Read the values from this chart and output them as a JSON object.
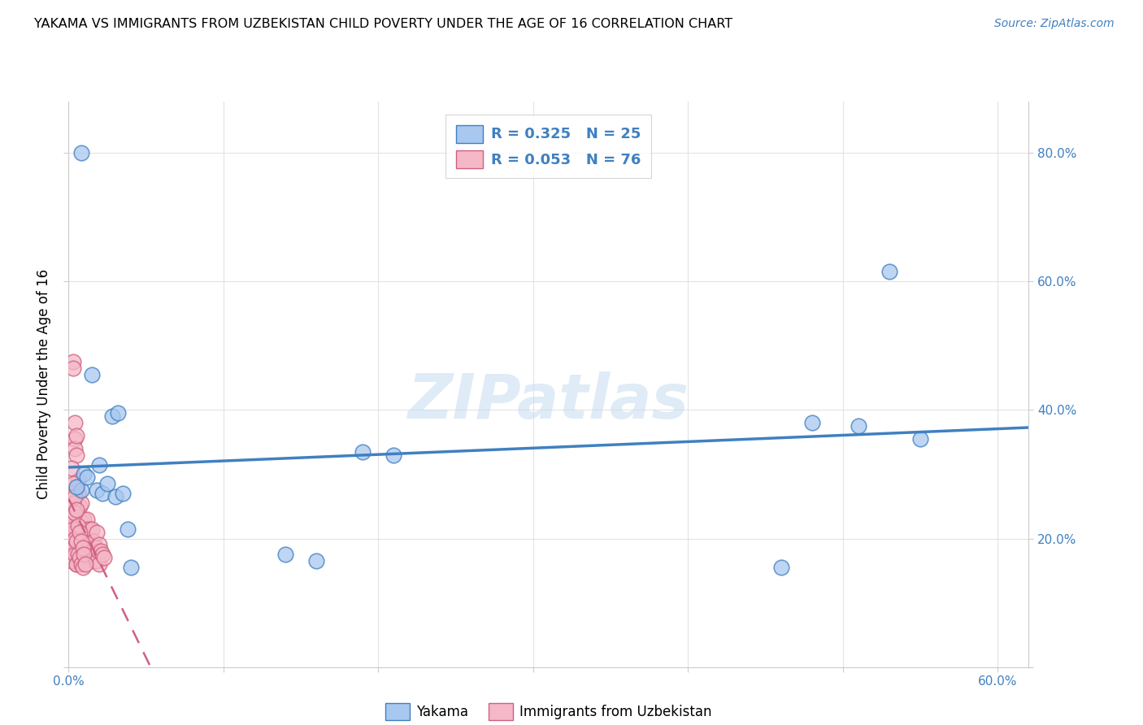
{
  "title": "YAKAMA VS IMMIGRANTS FROM UZBEKISTAN CHILD POVERTY UNDER THE AGE OF 16 CORRELATION CHART",
  "source": "Source: ZipAtlas.com",
  "ylabel": "Child Poverty Under the Age of 16",
  "xlim": [
    0.0,
    0.62
  ],
  "ylim": [
    0.0,
    0.88
  ],
  "x_ticks": [
    0.0,
    0.1,
    0.2,
    0.3,
    0.4,
    0.5,
    0.6
  ],
  "x_tick_labels": [
    "0.0%",
    "",
    "",
    "",
    "",
    "",
    "60.0%"
  ],
  "y_ticks": [
    0.0,
    0.2,
    0.4,
    0.6,
    0.8
  ],
  "y_tick_labels": [
    "",
    "20.0%",
    "40.0%",
    "60.0%",
    "80.0%"
  ],
  "legend_r_yakama": "R = 0.325",
  "legend_n_yakama": "N = 25",
  "legend_r_uzbek": "R = 0.053",
  "legend_n_uzbek": "N = 76",
  "color_yakama": "#A8C8F0",
  "color_uzbek": "#F5B8C8",
  "color_line_yakama": "#4080C0",
  "color_line_uzbek": "#D06080",
  "watermark": "ZIPatlas",
  "yakama_x": [
    0.008,
    0.005,
    0.01,
    0.012,
    0.015,
    0.018,
    0.02,
    0.022,
    0.025,
    0.028,
    0.03,
    0.032,
    0.035,
    0.038,
    0.04,
    0.008,
    0.19,
    0.21,
    0.14,
    0.48,
    0.53,
    0.55,
    0.46,
    0.51,
    0.16
  ],
  "yakama_y": [
    0.275,
    0.28,
    0.3,
    0.295,
    0.455,
    0.275,
    0.315,
    0.27,
    0.285,
    0.39,
    0.265,
    0.395,
    0.27,
    0.215,
    0.155,
    0.8,
    0.335,
    0.33,
    0.175,
    0.38,
    0.615,
    0.355,
    0.155,
    0.375,
    0.165
  ],
  "uzbek_x": [
    0.003,
    0.003,
    0.003,
    0.003,
    0.004,
    0.004,
    0.004,
    0.004,
    0.004,
    0.005,
    0.005,
    0.005,
    0.005,
    0.005,
    0.005,
    0.006,
    0.006,
    0.006,
    0.006,
    0.006,
    0.007,
    0.007,
    0.007,
    0.007,
    0.008,
    0.008,
    0.008,
    0.009,
    0.009,
    0.01,
    0.01,
    0.011,
    0.011,
    0.012,
    0.012,
    0.013,
    0.014,
    0.015,
    0.015,
    0.016,
    0.016,
    0.017,
    0.018,
    0.018,
    0.019,
    0.02,
    0.02,
    0.021,
    0.022,
    0.023,
    0.002,
    0.002,
    0.002,
    0.002,
    0.002,
    0.003,
    0.003,
    0.003,
    0.003,
    0.004,
    0.004,
    0.004,
    0.004,
    0.005,
    0.005,
    0.005,
    0.006,
    0.006,
    0.007,
    0.007,
    0.008,
    0.008,
    0.009,
    0.009,
    0.01,
    0.011
  ],
  "uzbek_y": [
    0.475,
    0.465,
    0.22,
    0.215,
    0.38,
    0.355,
    0.34,
    0.215,
    0.2,
    0.36,
    0.33,
    0.245,
    0.215,
    0.185,
    0.16,
    0.29,
    0.27,
    0.23,
    0.2,
    0.165,
    0.25,
    0.23,
    0.185,
    0.165,
    0.255,
    0.21,
    0.165,
    0.225,
    0.185,
    0.23,
    0.195,
    0.215,
    0.185,
    0.23,
    0.195,
    0.215,
    0.185,
    0.215,
    0.175,
    0.195,
    0.165,
    0.185,
    0.21,
    0.165,
    0.18,
    0.19,
    0.16,
    0.18,
    0.175,
    0.17,
    0.31,
    0.27,
    0.23,
    0.195,
    0.165,
    0.285,
    0.255,
    0.215,
    0.185,
    0.265,
    0.24,
    0.2,
    0.175,
    0.245,
    0.195,
    0.16,
    0.22,
    0.175,
    0.21,
    0.17,
    0.195,
    0.16,
    0.185,
    0.155,
    0.175,
    0.16
  ]
}
